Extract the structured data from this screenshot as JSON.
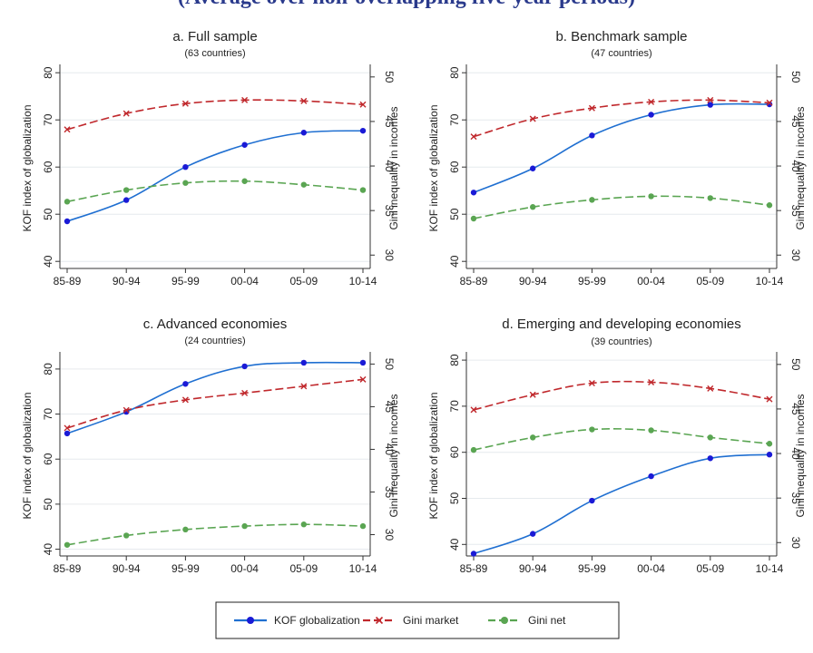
{
  "header": {
    "title": "(Average over non-overlapping five-year periods)"
  },
  "colors": {
    "kof": "#1f6fd1",
    "kof_marker": "#1a1ad6",
    "gini_market": "#c0282c",
    "gini_net": "#5aa552",
    "grid": "#e6eaee"
  },
  "chart_data": [
    {
      "type": "line",
      "title": "a. Full sample",
      "subtitle": "(63 countries)",
      "categories": [
        "85-89",
        "90-94",
        "95-99",
        "00-04",
        "05-09",
        "10-14"
      ],
      "ylabel": "KOF index of globalization",
      "y2label": "Gini inequality in incomes",
      "ylim": [
        38.5,
        81
      ],
      "y2lim": [
        28.5,
        51
      ],
      "yticks": [
        40,
        50,
        60,
        70,
        80
      ],
      "y2ticks": [
        30,
        35,
        40,
        45,
        50
      ],
      "grid": true,
      "series": [
        {
          "name": "KOF globalization",
          "axis": "left",
          "values": [
            48.5,
            53.0,
            60.0,
            64.7,
            67.3,
            67.7
          ]
        },
        {
          "name": "Gini market",
          "axis": "right",
          "values": [
            44.1,
            45.9,
            47.0,
            47.4,
            47.3,
            46.9
          ]
        },
        {
          "name": "Gini net",
          "axis": "right",
          "values": [
            36.0,
            37.3,
            38.1,
            38.3,
            37.9,
            37.3
          ]
        }
      ]
    },
    {
      "type": "line",
      "title": "b. Benchmark sample",
      "subtitle": "(47 countries)",
      "categories": [
        "85-89",
        "90-94",
        "95-99",
        "00-04",
        "05-09",
        "10-14"
      ],
      "ylabel": "KOF index of globalization",
      "y2label": "Gini inequality in incomes",
      "ylim": [
        38.5,
        81
      ],
      "y2lim": [
        28.5,
        51
      ],
      "yticks": [
        40,
        50,
        60,
        70,
        80
      ],
      "y2ticks": [
        30,
        35,
        40,
        45,
        50
      ],
      "grid": true,
      "series": [
        {
          "name": "KOF globalization",
          "axis": "left",
          "values": [
            54.6,
            59.7,
            66.7,
            71.1,
            73.2,
            73.3
          ]
        },
        {
          "name": "Gini market",
          "axis": "right",
          "values": [
            43.3,
            45.3,
            46.5,
            47.2,
            47.4,
            47.1
          ]
        },
        {
          "name": "Gini net",
          "axis": "right",
          "values": [
            34.1,
            35.4,
            36.2,
            36.6,
            36.4,
            35.6
          ]
        }
      ]
    },
    {
      "type": "line",
      "title": "c. Advanced economies",
      "subtitle": "(24 countries)",
      "categories": [
        "85-89",
        "90-94",
        "95-99",
        "00-04",
        "05-09",
        "10-14"
      ],
      "ylabel": "KOF index of globalization",
      "y2label": "Gini inequality in incomes",
      "ylim": [
        38.5,
        83
      ],
      "y2lim": [
        27.5,
        51
      ],
      "yticks": [
        40,
        50,
        60,
        70,
        80
      ],
      "y2ticks": [
        30,
        35,
        40,
        45,
        50
      ],
      "grid": true,
      "series": [
        {
          "name": "KOF globalization",
          "axis": "left",
          "values": [
            65.7,
            70.5,
            76.7,
            80.6,
            81.4,
            81.4
          ]
        },
        {
          "name": "Gini market",
          "axis": "right",
          "values": [
            42.5,
            44.6,
            45.8,
            46.6,
            47.4,
            48.2
          ]
        },
        {
          "name": "Gini net",
          "axis": "right",
          "values": [
            28.8,
            29.9,
            30.6,
            31.0,
            31.2,
            31.0
          ]
        }
      ]
    },
    {
      "type": "line",
      "title": "d. Emerging and developing economies",
      "subtitle": "(39 countries)",
      "categories": [
        "85-89",
        "90-94",
        "95-99",
        "00-04",
        "05-09",
        "10-14"
      ],
      "ylabel": "KOF index of globalization",
      "y2label": "Gini inequality in incomes",
      "ylim": [
        37.5,
        81
      ],
      "y2lim": [
        28.5,
        51
      ],
      "yticks": [
        40,
        50,
        60,
        70,
        80
      ],
      "y2ticks": [
        30,
        35,
        40,
        45,
        50
      ],
      "grid": true,
      "series": [
        {
          "name": "KOF globalization",
          "axis": "left",
          "values": [
            38.0,
            42.3,
            49.5,
            54.8,
            58.7,
            59.5
          ]
        },
        {
          "name": "Gini market",
          "axis": "right",
          "values": [
            44.9,
            46.6,
            47.9,
            48.0,
            47.3,
            46.1
          ]
        },
        {
          "name": "Gini net",
          "axis": "right",
          "values": [
            40.4,
            41.8,
            42.7,
            42.6,
            41.8,
            41.1
          ]
        }
      ]
    }
  ],
  "legend": {
    "position": "bottom-center",
    "items": [
      {
        "label": "KOF globalization",
        "series": "kof"
      },
      {
        "label": "Gini market",
        "series": "gini_market"
      },
      {
        "label": "Gini net",
        "series": "gini_net"
      }
    ]
  }
}
